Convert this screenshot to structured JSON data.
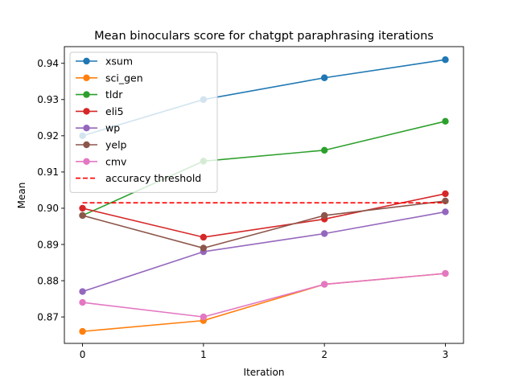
{
  "chart_data": {
    "type": "line",
    "title": "Mean binoculars score for chatgpt paraphrasing iterations",
    "xlabel": "Iteration",
    "ylabel": "Mean",
    "x": [
      0,
      1,
      2,
      3
    ],
    "x_ticks": [
      "0",
      "1",
      "2",
      "3"
    ],
    "xlim": [
      -0.15,
      3.15
    ],
    "ylim": [
      0.8627,
      0.9446
    ],
    "y_ticks": [
      "0.87",
      "0.88",
      "0.89",
      "0.90",
      "0.91",
      "0.92",
      "0.93",
      "0.94"
    ],
    "y_tick_values": [
      0.87,
      0.88,
      0.89,
      0.9,
      0.91,
      0.92,
      0.93,
      0.94
    ],
    "grid": false,
    "legend_position": "upper-left",
    "series": [
      {
        "name": "xsum",
        "color": "#1f77b4",
        "values": [
          0.92,
          0.93,
          0.936,
          0.941
        ]
      },
      {
        "name": "sci_gen",
        "color": "#ff7f0e",
        "values": [
          0.866,
          0.869,
          0.879,
          0.882
        ]
      },
      {
        "name": "tldr",
        "color": "#2ca02c",
        "values": [
          0.898,
          0.913,
          0.916,
          0.924
        ]
      },
      {
        "name": "eli5",
        "color": "#d62728",
        "values": [
          0.9,
          0.892,
          0.897,
          0.904
        ]
      },
      {
        "name": "wp",
        "color": "#9467bd",
        "values": [
          0.877,
          0.888,
          0.893,
          0.899
        ]
      },
      {
        "name": "yelp",
        "color": "#8c564b",
        "values": [
          0.898,
          0.889,
          0.898,
          0.902
        ]
      },
      {
        "name": "cmv",
        "color": "#e377c2",
        "values": [
          0.874,
          0.87,
          0.879,
          0.882
        ]
      }
    ],
    "threshold": {
      "name": "accuracy threshold",
      "value": 0.9015,
      "color": "#ff0000",
      "style": "dashed"
    }
  }
}
